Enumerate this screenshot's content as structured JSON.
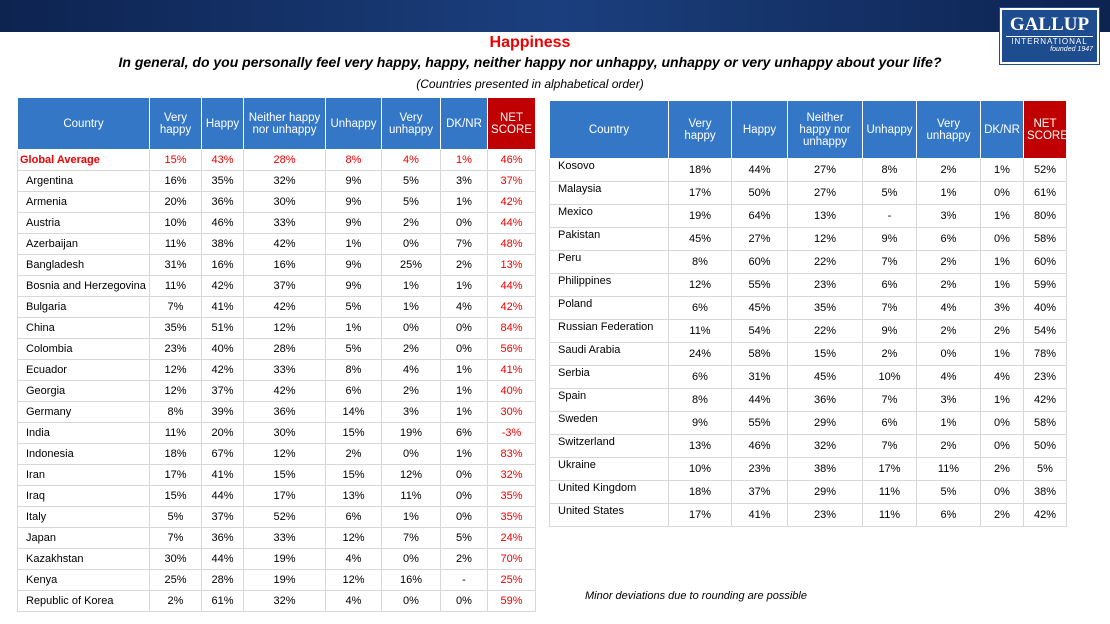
{
  "header": {
    "title": "Happiness",
    "question": "In general, do you personally feel very happy, happy, neither happy nor unhappy, unhappy or very unhappy about your life?",
    "note": "(Countries presented in alphabetical order)"
  },
  "logo": {
    "name": "GALLUP",
    "sub": "INTERNATIONAL",
    "founded": "founded 1947"
  },
  "tables": [
    {
      "columns": [
        "Country",
        "Very happy",
        "Happy",
        "Neither happy nor unhappy",
        "Unhappy",
        "Very unhappy",
        "DK/NR",
        "NET SCORE"
      ],
      "rows": [
        [
          "Global Average",
          "15%",
          "43%",
          "28%",
          "8%",
          "4%",
          "1%",
          "46%"
        ],
        [
          "Argentina",
          "16%",
          "35%",
          "32%",
          "9%",
          "5%",
          "3%",
          "37%"
        ],
        [
          "Armenia",
          "20%",
          "36%",
          "30%",
          "9%",
          "5%",
          "1%",
          "42%"
        ],
        [
          "Austria",
          "10%",
          "46%",
          "33%",
          "9%",
          "2%",
          "0%",
          "44%"
        ],
        [
          "Azerbaijan",
          "11%",
          "38%",
          "42%",
          "1%",
          "0%",
          "7%",
          "48%"
        ],
        [
          "Bangladesh",
          "31%",
          "16%",
          "16%",
          "9%",
          "25%",
          "2%",
          "13%"
        ],
        [
          "Bosnia and Herzegovina",
          "11%",
          "42%",
          "37%",
          "9%",
          "1%",
          "1%",
          "44%"
        ],
        [
          "Bulgaria",
          "7%",
          "41%",
          "42%",
          "5%",
          "1%",
          "4%",
          "42%"
        ],
        [
          "China",
          "35%",
          "51%",
          "12%",
          "1%",
          "0%",
          "0%",
          "84%"
        ],
        [
          "Colombia",
          "23%",
          "40%",
          "28%",
          "5%",
          "2%",
          "0%",
          "56%"
        ],
        [
          "Ecuador",
          "12%",
          "42%",
          "33%",
          "8%",
          "4%",
          "1%",
          "41%"
        ],
        [
          "Georgia",
          "12%",
          "37%",
          "42%",
          "6%",
          "2%",
          "1%",
          "40%"
        ],
        [
          "Germany",
          "8%",
          "39%",
          "36%",
          "14%",
          "3%",
          "1%",
          "30%"
        ],
        [
          "India",
          "11%",
          "20%",
          "30%",
          "15%",
          "19%",
          "6%",
          "-3%"
        ],
        [
          "Indonesia",
          "18%",
          "67%",
          "12%",
          "2%",
          "0%",
          "1%",
          "83%"
        ],
        [
          "Iran",
          "17%",
          "41%",
          "15%",
          "15%",
          "12%",
          "0%",
          "32%"
        ],
        [
          "Iraq",
          "15%",
          "44%",
          "17%",
          "13%",
          "11%",
          "0%",
          "35%"
        ],
        [
          "Italy",
          "5%",
          "37%",
          "52%",
          "6%",
          "1%",
          "0%",
          "35%"
        ],
        [
          "Japan",
          "7%",
          "36%",
          "33%",
          "12%",
          "7%",
          "5%",
          "24%"
        ],
        [
          "Kazakhstan",
          "30%",
          "44%",
          "19%",
          "4%",
          "0%",
          "2%",
          "70%"
        ],
        [
          "Kenya",
          "25%",
          "28%",
          "19%",
          "12%",
          "16%",
          "-",
          "25%"
        ],
        [
          "Republic of Korea",
          "2%",
          "61%",
          "32%",
          "4%",
          "0%",
          "0%",
          "59%"
        ]
      ]
    },
    {
      "columns": [
        "Country",
        "Very happy",
        "Happy",
        "Neither happy nor unhappy",
        "Unhappy",
        "Very unhappy",
        "DK/NR",
        "NET SCORE"
      ],
      "rows": [
        [
          "Kosovo",
          "18%",
          "44%",
          "27%",
          "8%",
          "2%",
          "1%",
          "52%"
        ],
        [
          "Malaysia",
          "17%",
          "50%",
          "27%",
          "5%",
          "1%",
          "0%",
          "61%"
        ],
        [
          "Mexico",
          "19%",
          "64%",
          "13%",
          "-",
          "3%",
          "1%",
          "80%"
        ],
        [
          "Pakistan",
          "45%",
          "27%",
          "12%",
          "9%",
          "6%",
          "0%",
          "58%"
        ],
        [
          "Peru",
          "8%",
          "60%",
          "22%",
          "7%",
          "2%",
          "1%",
          "60%"
        ],
        [
          "Philippines",
          "12%",
          "55%",
          "23%",
          "6%",
          "2%",
          "1%",
          "59%"
        ],
        [
          "Poland",
          "6%",
          "45%",
          "35%",
          "7%",
          "4%",
          "3%",
          "40%"
        ],
        [
          "Russian Federation",
          "11%",
          "54%",
          "22%",
          "9%",
          "2%",
          "2%",
          "54%"
        ],
        [
          "Saudi Arabia",
          "24%",
          "58%",
          "15%",
          "2%",
          "0%",
          "1%",
          "78%"
        ],
        [
          "Serbia",
          "6%",
          "31%",
          "45%",
          "10%",
          "4%",
          "4%",
          "23%"
        ],
        [
          "Spain",
          "8%",
          "44%",
          "36%",
          "7%",
          "3%",
          "1%",
          "42%"
        ],
        [
          "Sweden",
          "9%",
          "55%",
          "29%",
          "6%",
          "1%",
          "0%",
          "58%"
        ],
        [
          "Switzerland",
          "13%",
          "46%",
          "32%",
          "7%",
          "2%",
          "0%",
          "50%"
        ],
        [
          "Ukraine",
          "10%",
          "23%",
          "38%",
          "17%",
          "11%",
          "2%",
          "5%"
        ],
        [
          "United Kingdom",
          "18%",
          "37%",
          "29%",
          "11%",
          "5%",
          "0%",
          "38%"
        ],
        [
          "United States",
          "17%",
          "41%",
          "23%",
          "11%",
          "6%",
          "2%",
          "42%"
        ]
      ]
    }
  ],
  "footnote": "Minor deviations due to rounding are possible"
}
